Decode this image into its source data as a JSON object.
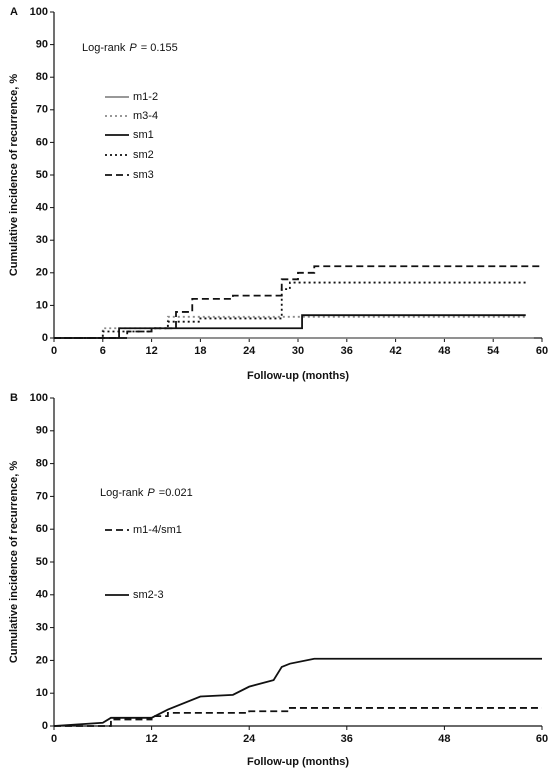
{
  "chart_data": [
    {
      "type": "line",
      "panel": "A",
      "annotation": [
        "Log-rank",
        "P",
        "= 0.155"
      ],
      "x_label": "Follow-up (months)",
      "y_label": "Cumulative incidence of recurrence, %",
      "xlim": [
        0,
        60
      ],
      "xticks": [
        0,
        6,
        12,
        18,
        24,
        30,
        36,
        42,
        48,
        54,
        60
      ],
      "ylim": [
        0,
        100
      ],
      "yticks": [
        0,
        10,
        20,
        30,
        40,
        50,
        60,
        70,
        80,
        90,
        100
      ],
      "series": [
        {
          "name": "m1-2",
          "color": "#8a8a8a",
          "dash": "solid",
          "x": [
            0,
            59
          ],
          "values": [
            0,
            0
          ]
        },
        {
          "name": "m3-4",
          "color": "#8a8a8a",
          "dash": "dotted",
          "x": [
            0,
            6,
            6,
            14,
            14,
            58
          ],
          "values": [
            0,
            0,
            3,
            3,
            6.5,
            6.5
          ]
        },
        {
          "name": "sm1",
          "color": "#111111",
          "dash": "solid",
          "x": [
            0,
            8,
            8,
            30.5,
            30.5,
            58
          ],
          "values": [
            0,
            0,
            3,
            3,
            7,
            7
          ]
        },
        {
          "name": "sm2",
          "color": "#111111",
          "dash": "dotted",
          "x": [
            0,
            6,
            6,
            12,
            12,
            14,
            14,
            18,
            18,
            28,
            28,
            29,
            29,
            58
          ],
          "values": [
            0,
            0,
            2,
            2,
            3,
            3,
            5,
            5,
            6,
            6,
            15,
            15,
            17,
            17
          ]
        },
        {
          "name": "sm3",
          "color": "#111111",
          "dash": "dashed",
          "x": [
            0,
            9,
            9,
            12,
            12,
            15,
            15,
            17,
            17,
            22,
            22,
            28,
            28,
            30,
            30,
            32,
            32,
            60
          ],
          "values": [
            0,
            0,
            2,
            2,
            3,
            3,
            8,
            8,
            12,
            12,
            13,
            13,
            18,
            18,
            20,
            20,
            22,
            22
          ]
        }
      ]
    },
    {
      "type": "line",
      "panel": "B",
      "annotation": [
        "Log-rank",
        "P",
        "=0.021"
      ],
      "x_label": "Follow-up (months)",
      "y_label": "Cumulative incidence of recurrence, %",
      "xlim": [
        0,
        60
      ],
      "xticks": [
        0,
        12,
        24,
        36,
        48,
        60
      ],
      "ylim": [
        0,
        100
      ],
      "yticks": [
        0,
        10,
        20,
        30,
        40,
        50,
        60,
        70,
        80,
        90,
        100
      ],
      "series": [
        {
          "name": "m1-4/sm1",
          "color": "#111111",
          "dash": "dashed",
          "x": [
            0,
            7,
            7,
            12,
            12,
            14,
            14,
            24,
            24,
            29,
            29,
            60
          ],
          "values": [
            0,
            0,
            2,
            2,
            3,
            3,
            4,
            4,
            4.5,
            4.5,
            5.5,
            5.5
          ]
        },
        {
          "name": "sm2-3",
          "color": "#111111",
          "dash": "solid",
          "x": [
            0,
            6,
            7,
            12,
            14,
            18,
            22,
            24,
            27,
            28,
            29,
            32,
            60
          ],
          "values": [
            0,
            1,
            2.5,
            2.5,
            5,
            9,
            9.5,
            12,
            14,
            18,
            19,
            20.5,
            20.5
          ]
        }
      ]
    }
  ]
}
